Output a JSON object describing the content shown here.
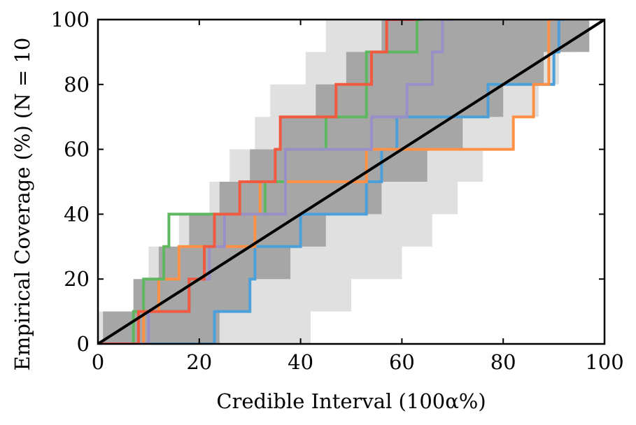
{
  "chart_data": {
    "type": "line",
    "xlabel": "Credible Interval (100α%)",
    "ylabel": "Empirical Coverage (%) (N = 10",
    "xlim": [
      0,
      100
    ],
    "ylim": [
      0,
      100
    ],
    "xticks": [
      "0",
      "20",
      "40",
      "60",
      "80",
      "100"
    ],
    "yticks": [
      "0",
      "20",
      "40",
      "60",
      "80",
      "100"
    ],
    "grid": false,
    "diagonal": {
      "x": [
        0,
        100
      ],
      "y": [
        0,
        100
      ],
      "color": "#000000"
    },
    "bands": [
      {
        "level": "outer",
        "color": "#e0e0e0",
        "upper": [
          [
            0,
            10
          ],
          [
            8,
            10
          ],
          [
            8,
            20
          ],
          [
            10,
            20
          ],
          [
            10,
            30
          ],
          [
            16,
            30
          ],
          [
            16,
            40
          ],
          [
            22,
            40
          ],
          [
            22,
            50
          ],
          [
            26,
            50
          ],
          [
            26,
            60
          ],
          [
            31,
            60
          ],
          [
            31,
            70
          ],
          [
            34,
            70
          ],
          [
            34,
            80
          ],
          [
            41,
            80
          ],
          [
            41,
            90
          ],
          [
            45,
            90
          ],
          [
            45,
            100
          ],
          [
            100,
            100
          ]
        ],
        "lower": [
          [
            0,
            0
          ],
          [
            42,
            0
          ],
          [
            42,
            10
          ],
          [
            50,
            10
          ],
          [
            50,
            20
          ],
          [
            60,
            20
          ],
          [
            60,
            30
          ],
          [
            66,
            30
          ],
          [
            66,
            40
          ],
          [
            71,
            40
          ],
          [
            71,
            50
          ],
          [
            76,
            50
          ],
          [
            76,
            60
          ],
          [
            82,
            60
          ],
          [
            82,
            70
          ],
          [
            87,
            70
          ],
          [
            87,
            80
          ],
          [
            91,
            80
          ],
          [
            91,
            90
          ],
          [
            94,
            90
          ],
          [
            94,
            100
          ],
          [
            100,
            100
          ]
        ]
      },
      {
        "level": "inner",
        "color": "#a6a6a6",
        "upper": [
          [
            1,
            0
          ],
          [
            1,
            10
          ],
          [
            7,
            10
          ],
          [
            7,
            20
          ],
          [
            12,
            20
          ],
          [
            12,
            30
          ],
          [
            18,
            30
          ],
          [
            18,
            40
          ],
          [
            24,
            40
          ],
          [
            24,
            50
          ],
          [
            30,
            50
          ],
          [
            30,
            60
          ],
          [
            36,
            60
          ],
          [
            36,
            70
          ],
          [
            43,
            70
          ],
          [
            43,
            80
          ],
          [
            49,
            80
          ],
          [
            49,
            90
          ],
          [
            56,
            90
          ],
          [
            56,
            100
          ],
          [
            100,
            100
          ]
        ],
        "lower": [
          [
            24,
            0
          ],
          [
            24,
            10
          ],
          [
            30,
            10
          ],
          [
            30,
            20
          ],
          [
            38,
            20
          ],
          [
            38,
            30
          ],
          [
            45,
            30
          ],
          [
            45,
            40
          ],
          [
            56,
            40
          ],
          [
            56,
            50
          ],
          [
            65,
            50
          ],
          [
            65,
            60
          ],
          [
            72,
            60
          ],
          [
            72,
            70
          ],
          [
            80,
            70
          ],
          [
            80,
            80
          ],
          [
            88,
            80
          ],
          [
            88,
            90
          ],
          [
            97,
            90
          ],
          [
            97,
            100
          ],
          [
            100,
            100
          ]
        ]
      }
    ],
    "series": [
      {
        "color": "#4c9fd8",
        "x": [
          0,
          23,
          23,
          30,
          30,
          31,
          31,
          40,
          40,
          41,
          41,
          53,
          53,
          55,
          55,
          56,
          56,
          58,
          58,
          59,
          59,
          76,
          76,
          77,
          77,
          90,
          90,
          91,
          91,
          92
        ],
        "y": [
          0,
          0,
          10,
          10,
          20,
          20,
          30,
          30,
          40,
          40,
          40,
          40,
          50,
          50,
          50,
          50,
          60,
          60,
          60,
          60,
          70,
          70,
          70,
          70,
          80,
          80,
          90,
          90,
          100,
          100
        ]
      },
      {
        "color": "#ff9147",
        "x": [
          0,
          9,
          9,
          12,
          12,
          15,
          15,
          16,
          16,
          19,
          19,
          27,
          27,
          31,
          31,
          32,
          32,
          37,
          37,
          53,
          53,
          81,
          81,
          82,
          82,
          85,
          85,
          86,
          86,
          89,
          89,
          90
        ],
        "y": [
          0,
          0,
          10,
          10,
          20,
          20,
          20,
          20,
          30,
          30,
          30,
          30,
          30,
          30,
          40,
          40,
          50,
          50,
          50,
          50,
          60,
          60,
          60,
          60,
          70,
          70,
          70,
          70,
          80,
          80,
          100,
          100
        ]
      },
      {
        "color": "#5fb860",
        "x": [
          0,
          7,
          7,
          9,
          9,
          12,
          12,
          13,
          13,
          14,
          14,
          24,
          24,
          31,
          31,
          33,
          33,
          35,
          35,
          37,
          37,
          44,
          44,
          45,
          45,
          51,
          51,
          53,
          53,
          58,
          58,
          63,
          63,
          64
        ],
        "y": [
          0,
          0,
          10,
          10,
          20,
          20,
          20,
          20,
          30,
          30,
          40,
          40,
          40,
          40,
          40,
          40,
          50,
          50,
          50,
          50,
          60,
          60,
          60,
          60,
          70,
          70,
          70,
          70,
          90,
          90,
          90,
          90,
          100,
          100
        ]
      },
      {
        "color": "#9a90c8",
        "x": [
          0,
          10,
          10,
          18,
          18,
          19,
          19,
          22,
          22,
          25,
          25,
          26,
          26,
          35,
          35,
          37,
          37,
          38,
          38,
          52,
          52,
          54,
          54,
          55,
          55,
          61,
          61,
          62,
          62,
          66,
          66,
          68,
          68,
          70
        ],
        "y": [
          0,
          0,
          10,
          10,
          20,
          20,
          20,
          20,
          30,
          30,
          40,
          40,
          40,
          40,
          40,
          40,
          60,
          60,
          60,
          60,
          60,
          60,
          70,
          70,
          70,
          70,
          80,
          80,
          80,
          80,
          90,
          90,
          100,
          100
        ]
      },
      {
        "color": "#f05a40",
        "x": [
          0,
          8,
          8,
          11,
          11,
          18,
          18,
          21,
          21,
          23,
          23,
          24,
          24,
          28,
          28,
          30,
          30,
          35,
          35,
          36,
          36,
          46,
          46,
          47,
          47,
          52,
          52,
          54,
          54,
          56,
          56,
          57,
          57,
          63
        ],
        "y": [
          0,
          0,
          10,
          10,
          10,
          10,
          20,
          20,
          30,
          30,
          40,
          40,
          40,
          40,
          50,
          50,
          50,
          50,
          60,
          60,
          70,
          70,
          70,
          70,
          80,
          80,
          80,
          80,
          90,
          90,
          90,
          90,
          100,
          100
        ]
      }
    ]
  }
}
